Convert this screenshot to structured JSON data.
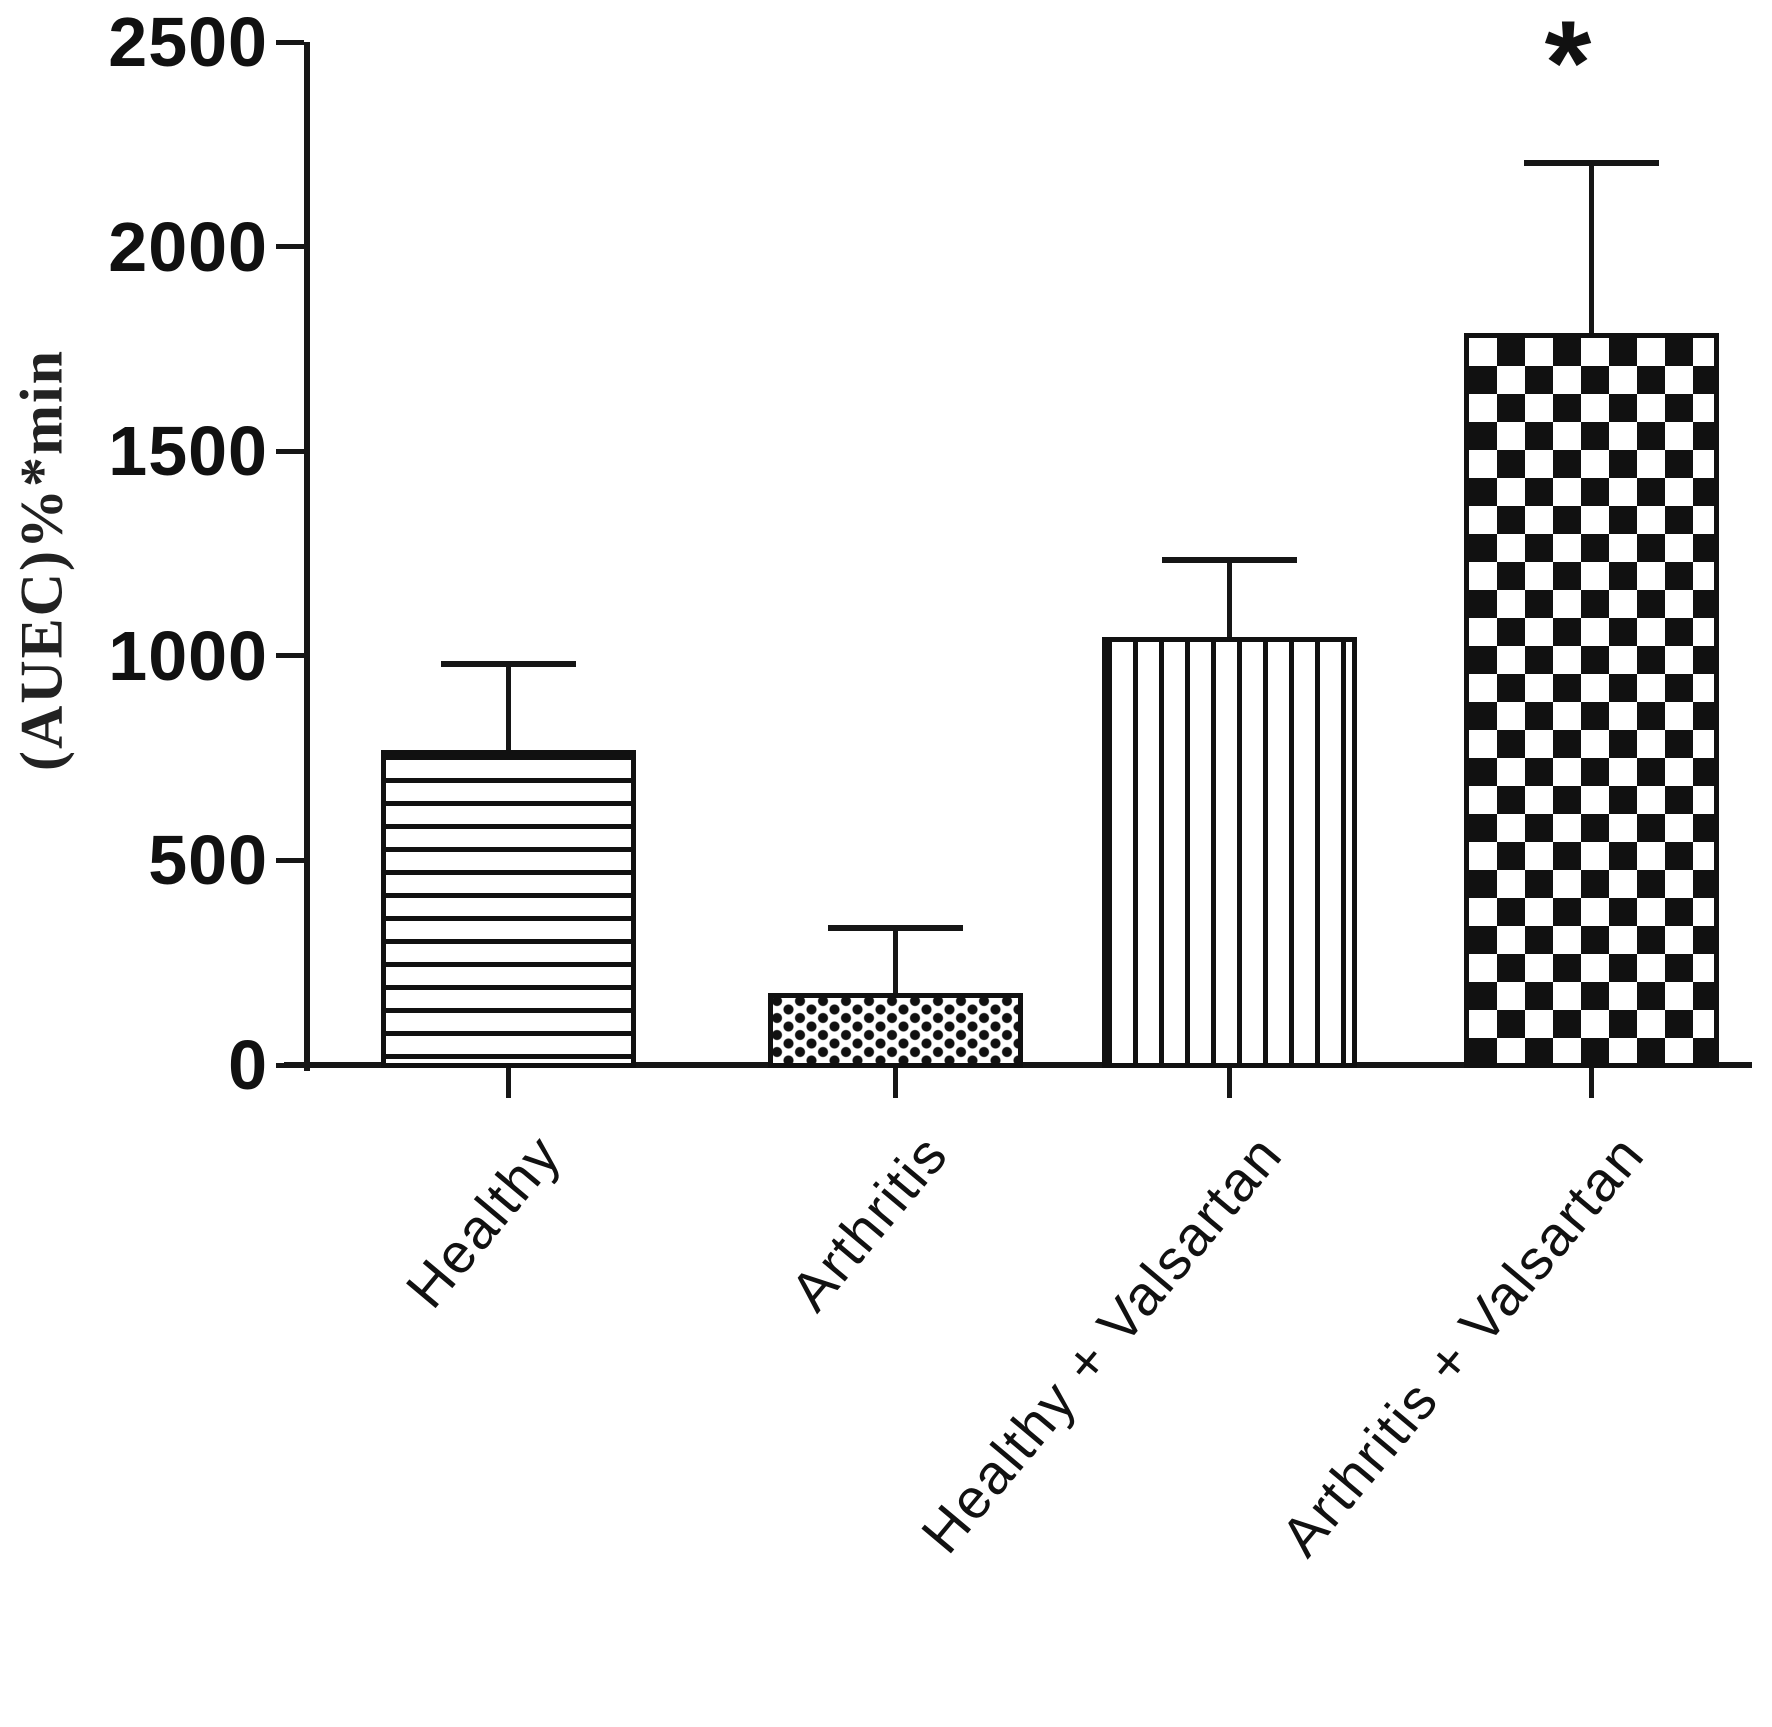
{
  "colors": {
    "foreground": "#111111",
    "background": "#ffffff"
  },
  "chart_data": {
    "type": "bar",
    "title": "",
    "xlabel": "",
    "ylabel": "(AUEC)%*min",
    "ylim": [
      0,
      2500
    ],
    "grid": false,
    "legend": null,
    "categories": [
      "Healthy",
      "Arthritis",
      "Healthy + Valsartan",
      "Arthritis + Valsartan"
    ],
    "values": [
      770,
      175,
      1045,
      1790
    ],
    "errors_plus": [
      210,
      160,
      190,
      415
    ],
    "error_tops": [
      980,
      335,
      1235,
      2205
    ],
    "yticks": [
      {
        "label": "0",
        "value": 0
      },
      {
        "label": "500",
        "value": 500
      },
      {
        "label": "1000",
        "value": 1000
      },
      {
        "label": "1500",
        "value": 1500
      },
      {
        "label": "2000",
        "value": 2000
      },
      {
        "label": "2500",
        "value": 2500
      }
    ],
    "bar_patterns": [
      "horizontal-lines",
      "dots",
      "vertical-lines",
      "checkerboard"
    ],
    "annotations": [
      {
        "text": "*",
        "bar_index": 3,
        "meaning": "significant difference marker"
      }
    ]
  }
}
